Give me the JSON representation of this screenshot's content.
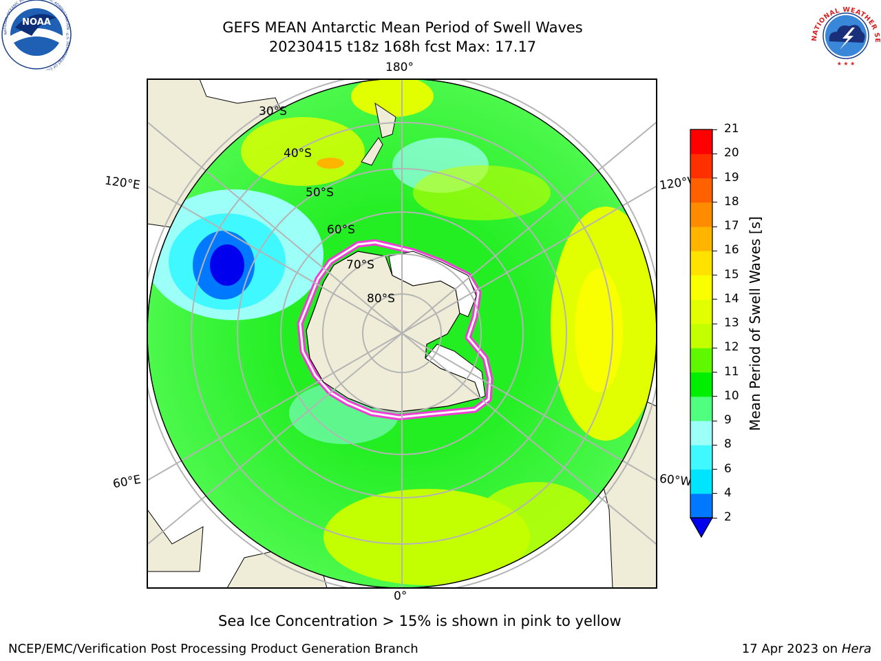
{
  "title_line1": "GEFS MEAN Antarctic Mean Period of Swell Waves",
  "title_line2": "20230415 t18z 168h fcst   Max: 17.17",
  "logos": {
    "noaa_text": "NOAA",
    "noaa_ring": "NATIONAL OCEANIC AND ATMOSPHERIC ADMINISTRATION · U.S. DEPARTMENT OF COMMERCE ·",
    "nws_ring": "NATIONAL WEATHER SERVICE"
  },
  "map": {
    "projection": "south-polar-stereographic",
    "longitude_labels": {
      "top": "180°",
      "bottom": "0°",
      "left_upper": "120°E",
      "left_lower": "60°E",
      "right_upper": "120°W",
      "right_lower": "60°W"
    },
    "latitude_labels": [
      "30°S",
      "40°S",
      "50°S",
      "60°S",
      "70°S",
      "80°S"
    ],
    "colors": {
      "land": "#efecd8",
      "ice_shelf": "#ffffff",
      "sea_ice_edge": "#ee3ed6",
      "grid": "#b4b4b4"
    }
  },
  "colorbar": {
    "label": "Mean Period of Swell Waves [s]",
    "ticks": [
      "2",
      "4",
      "6",
      "8",
      "9",
      "10",
      "11",
      "12",
      "13",
      "14",
      "15",
      "16",
      "17",
      "18",
      "19",
      "20",
      "21"
    ],
    "colors": [
      "#0078ff",
      "#00e4ff",
      "#40f8ff",
      "#9cfff8",
      "#50ff80",
      "#00ee00",
      "#60f800",
      "#c4ff00",
      "#e2ff00",
      "#faff00",
      "#ffe200",
      "#ffb400",
      "#ff8c00",
      "#ff6000",
      "#ff3000",
      "#ff0000"
    ],
    "extend_color": "#0000ee"
  },
  "note": "Sea Ice Concentration > 15% is shown in pink to yellow",
  "footer_left": "NCEP/EMC/Verification Post Processing Product Generation Branch",
  "footer_date": "17 Apr 2023 on",
  "footer_host": "Hera"
}
